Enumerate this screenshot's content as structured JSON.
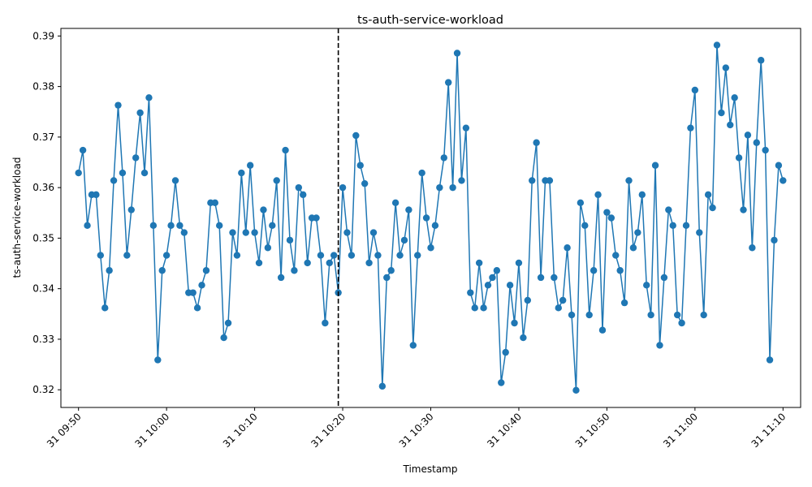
{
  "chart_data": {
    "type": "line",
    "title": "ts-auth-service-workload",
    "xlabel": "Timestamp",
    "ylabel": "ts-auth-service-workload",
    "x_ticks": [
      "31 09:50",
      "31 10:00",
      "31 10:10",
      "31 10:20",
      "31 10:30",
      "31 10:40",
      "31 10:50",
      "31 11:00",
      "31 11:10"
    ],
    "x_range_minutes": [
      "31 09:48",
      "31 11:12"
    ],
    "ylim": [
      0.3165,
      0.3915
    ],
    "y_ticks": [
      0.32,
      0.33,
      0.34,
      0.35,
      0.36,
      0.37,
      0.38,
      0.39
    ],
    "grid": false,
    "vline_x": "31 10:19.5",
    "series": [
      {
        "marker": "circle",
        "color": "#1f77b4",
        "x_start": "31 09:50",
        "x_step_minutes": 0.5,
        "values": [
          0.3629,
          0.3674,
          0.3525,
          0.3586,
          0.3586,
          0.3466,
          0.3362,
          0.3436,
          0.3614,
          0.3763,
          0.3629,
          0.3466,
          0.3556,
          0.3659,
          0.3748,
          0.3629,
          0.3778,
          0.3525,
          0.3259,
          0.3436,
          0.3466,
          0.3525,
          0.3614,
          0.3525,
          0.3511,
          0.3392,
          0.3392,
          0.3362,
          0.3407,
          0.3436,
          0.357,
          0.357,
          0.3525,
          0.3303,
          0.3332,
          0.3511,
          0.3466,
          0.3629,
          0.3511,
          0.3644,
          0.3511,
          0.3451,
          0.3556,
          0.3481,
          0.3525,
          0.3614,
          0.3422,
          0.3674,
          0.3496,
          0.3436,
          0.36,
          0.3586,
          0.3451,
          0.354,
          0.354,
          0.3466,
          0.3332,
          0.3451,
          0.3466,
          0.3392,
          0.36,
          0.3511,
          0.3466,
          0.3703,
          0.3644,
          0.3608,
          0.3451,
          0.3511,
          0.3466,
          0.3207,
          0.3422,
          0.3436,
          0.357,
          0.3466,
          0.3496,
          0.3556,
          0.3288,
          0.3466,
          0.3629,
          0.354,
          0.3481,
          0.3525,
          0.36,
          0.3659,
          0.3808,
          0.36,
          0.3866,
          0.3614,
          0.3718,
          0.3392,
          0.3362,
          0.3451,
          0.3362,
          0.3407,
          0.3422,
          0.3436,
          0.3214,
          0.3274,
          0.3407,
          0.3332,
          0.3451,
          0.3303,
          0.3377,
          0.3614,
          0.3689,
          0.3422,
          0.3614,
          0.3614,
          0.3422,
          0.3362,
          0.3377,
          0.3481,
          0.3348,
          0.3199,
          0.357,
          0.3525,
          0.3348,
          0.3436,
          0.3586,
          0.3318,
          0.3551,
          0.354,
          0.3466,
          0.3436,
          0.3372,
          0.3614,
          0.3481,
          0.3511,
          0.3586,
          0.3407,
          0.3348,
          0.3644,
          0.3288,
          0.3422,
          0.3556,
          0.3525,
          0.3348,
          0.3332,
          0.3525,
          0.3718,
          0.3793,
          0.3511,
          0.3348,
          0.3586,
          0.356,
          0.3882,
          0.3748,
          0.3837,
          0.3724,
          0.3778,
          0.3659,
          0.3556,
          0.3704,
          0.3481,
          0.3689,
          0.3852,
          0.3674,
          0.3259,
          0.3496,
          0.3644,
          0.3614
        ]
      }
    ]
  }
}
